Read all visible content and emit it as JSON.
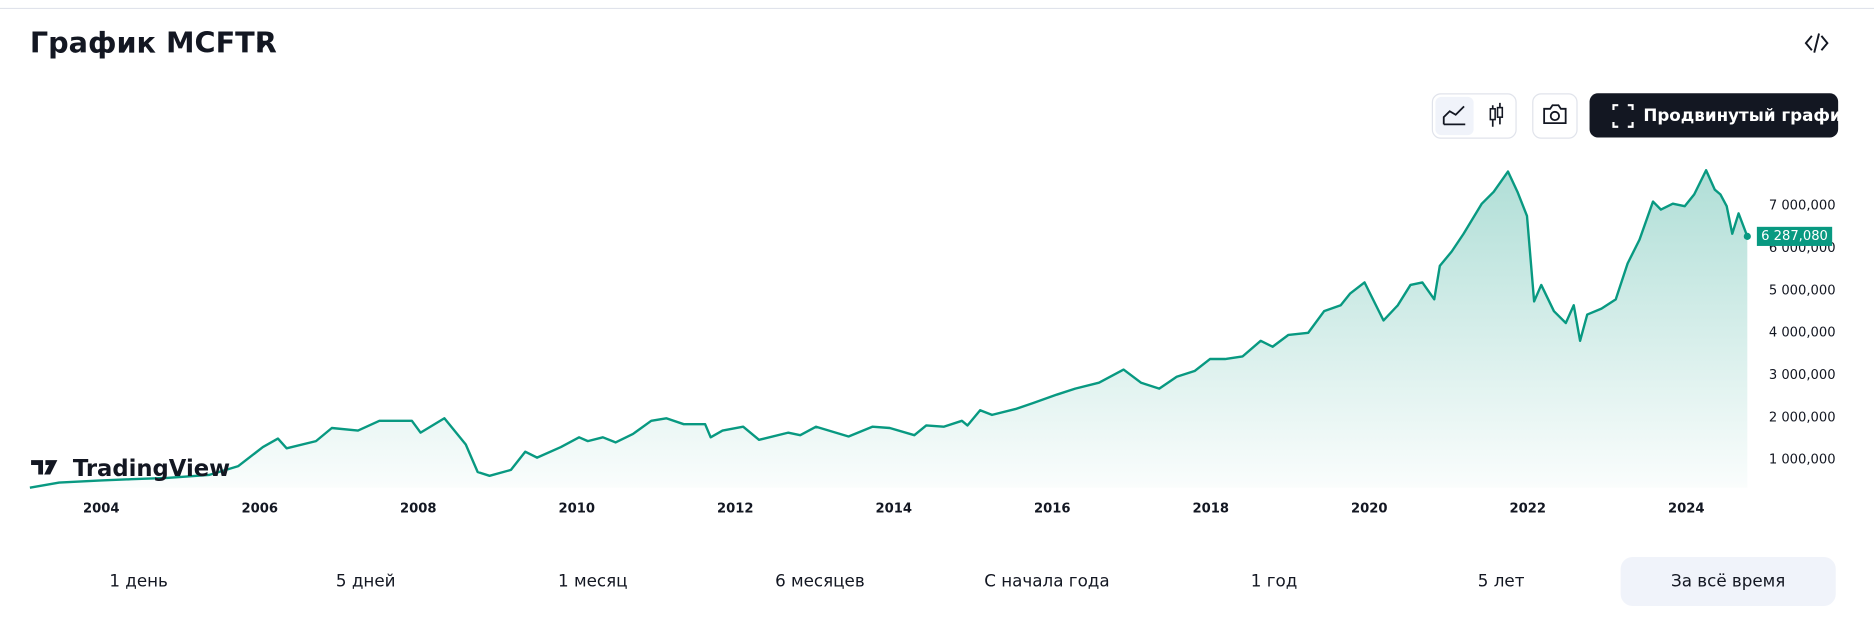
{
  "header": {
    "title": "График MCFTR"
  },
  "toolbar": {
    "advanced_button": "Продвинутый график"
  },
  "branding": "TradingView",
  "chart_data": {
    "type": "area",
    "color": "#089981",
    "x": [
      2003.1,
      2003.47,
      2004.0,
      2004.38,
      2004.83,
      2005.36,
      2005.73,
      2006.04,
      2006.23,
      2006.34,
      2006.71,
      2006.91,
      2007.24,
      2007.51,
      2007.92,
      2008.03,
      2008.33,
      2008.6,
      2008.75,
      2008.9,
      2009.17,
      2009.35,
      2009.5,
      2009.8,
      2010.03,
      2010.14,
      2010.33,
      2010.49,
      2010.71,
      2010.94,
      2011.13,
      2011.35,
      2011.62,
      2011.69,
      2011.84,
      2012.1,
      2012.3,
      2012.67,
      2012.82,
      2013.02,
      2013.43,
      2013.73,
      2013.95,
      2014.26,
      2014.41,
      2014.63,
      2014.86,
      2014.93,
      2015.09,
      2015.24,
      2015.54,
      2015.76,
      2016.06,
      2016.29,
      2016.59,
      2016.9,
      2017.12,
      2017.35,
      2017.57,
      2017.8,
      2017.99,
      2018.18,
      2018.4,
      2018.63,
      2018.78,
      2018.98,
      2019.23,
      2019.43,
      2019.64,
      2019.76,
      2019.94,
      2020.18,
      2020.36,
      2020.52,
      2020.67,
      2020.82,
      2020.89,
      2021.04,
      2021.19,
      2021.42,
      2021.57,
      2021.75,
      2021.87,
      2021.99,
      2022.08,
      2022.17,
      2022.33,
      2022.48,
      2022.58,
      2022.66,
      2022.75,
      2022.93,
      2023.11,
      2023.26,
      2023.41,
      2023.58,
      2023.68,
      2023.83,
      2023.98,
      2024.1,
      2024.25,
      2024.36,
      2024.43,
      2024.51,
      2024.58,
      2024.66,
      2024.77
    ],
    "values": [
      350000,
      470000,
      520000,
      550000,
      580000,
      650000,
      860000,
      1310000,
      1510000,
      1280000,
      1450000,
      1760000,
      1700000,
      1930000,
      1930000,
      1650000,
      1990000,
      1370000,
      720000,
      630000,
      770000,
      1200000,
      1060000,
      1310000,
      1540000,
      1450000,
      1540000,
      1420000,
      1620000,
      1930000,
      1990000,
      1850000,
      1850000,
      1540000,
      1700000,
      1790000,
      1480000,
      1650000,
      1590000,
      1790000,
      1560000,
      1790000,
      1760000,
      1590000,
      1820000,
      1790000,
      1930000,
      1820000,
      2180000,
      2070000,
      2210000,
      2350000,
      2550000,
      2690000,
      2830000,
      3140000,
      2830000,
      2690000,
      2970000,
      3110000,
      3390000,
      3390000,
      3450000,
      3820000,
      3680000,
      3960000,
      4010000,
      4520000,
      4660000,
      4940000,
      5200000,
      4300000,
      4660000,
      5140000,
      5200000,
      4800000,
      5590000,
      5930000,
      6350000,
      7060000,
      7340000,
      7820000,
      7340000,
      6770000,
      4750000,
      5140000,
      4520000,
      4240000,
      4660000,
      3820000,
      4440000,
      4580000,
      4800000,
      5650000,
      6210000,
      7110000,
      6920000,
      7060000,
      7000000,
      7280000,
      7850000,
      7390000,
      7280000,
      7000000,
      6350000,
      6830000,
      6287080
    ],
    "last_label": {
      "value": 6287080,
      "label": "6 287,080"
    },
    "xlim": [
      2003.1,
      2024.77
    ],
    "xticks": [
      2004,
      2006,
      2008,
      2010,
      2012,
      2014,
      2016,
      2018,
      2020,
      2022,
      2024
    ],
    "ylim": [
      350000,
      8200000
    ],
    "yticks": [
      {
        "value": 1000000,
        "label": "1 000,000"
      },
      {
        "value": 2000000,
        "label": "2 000,000"
      },
      {
        "value": 3000000,
        "label": "3 000,000"
      },
      {
        "value": 4000000,
        "label": "4 000,000"
      },
      {
        "value": 5000000,
        "label": "5 000,000"
      },
      {
        "value": 6000000,
        "label": "6 000,000"
      },
      {
        "value": 7000000,
        "label": "7 000,000"
      }
    ]
  },
  "ranges": {
    "items": [
      "1 день",
      "5 дней",
      "1 месяц",
      "6 месяцев",
      "С начала года",
      "1 год",
      "5 лет",
      "За всё время"
    ],
    "selected": 7
  }
}
